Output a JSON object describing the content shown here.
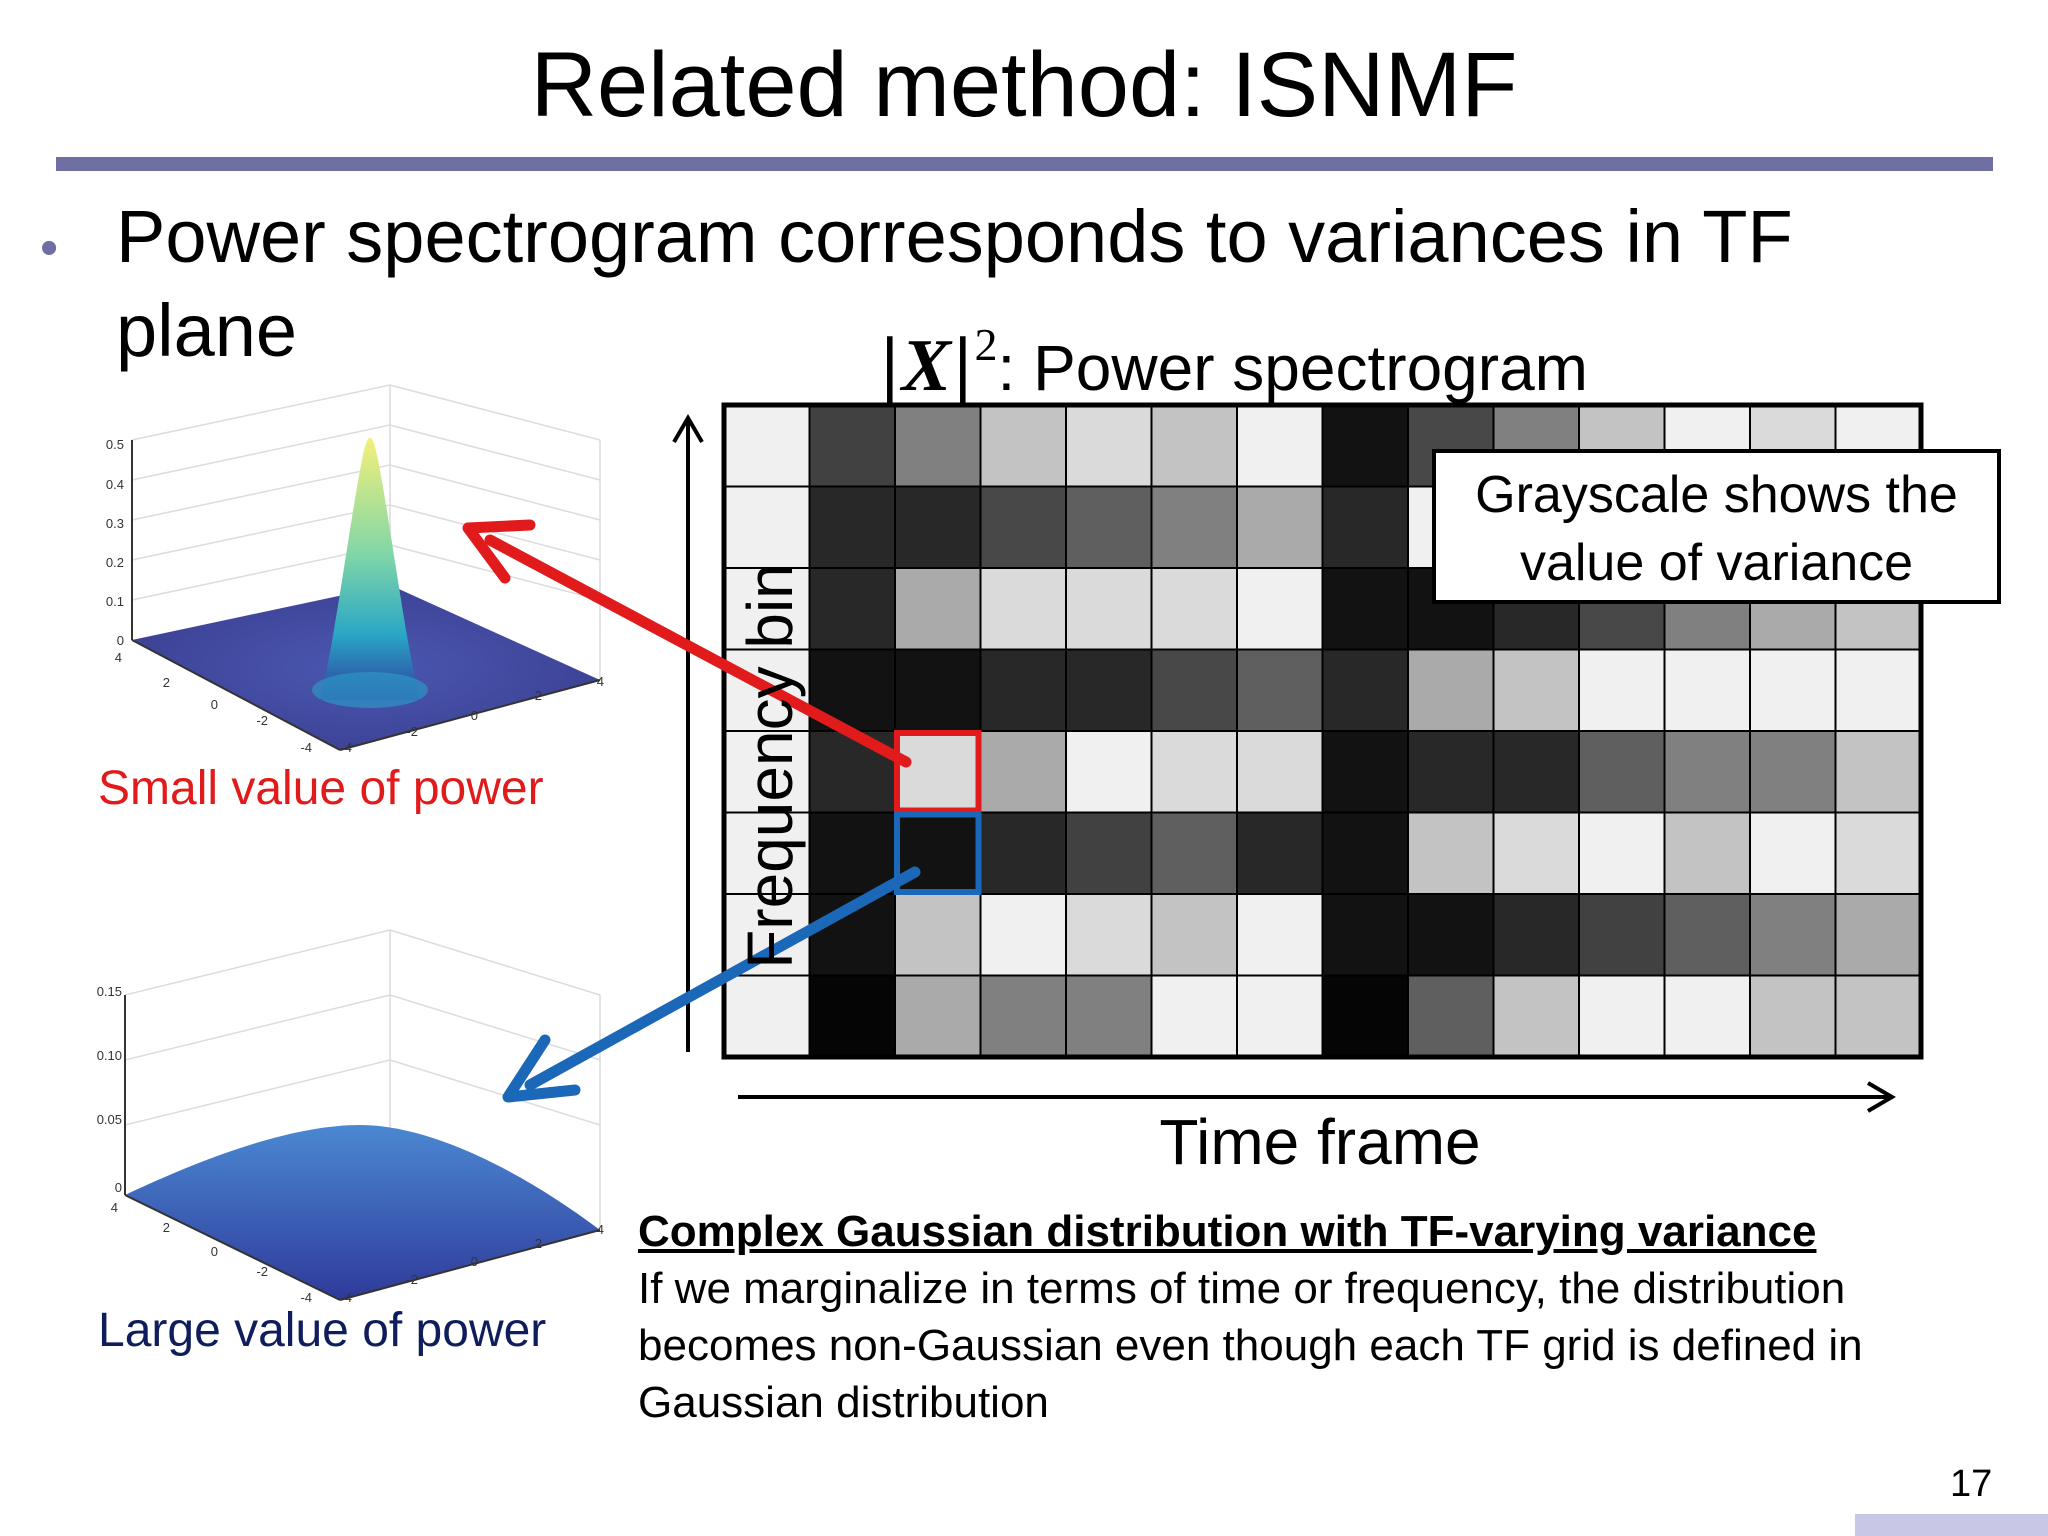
{
  "slide": {
    "title": "Related method: ISNMF",
    "bullet": "Power spectrogram corresponds to variances in TF plane",
    "page_number": "17",
    "accent_color": "#6f6fa3"
  },
  "spectrogram": {
    "symbol_bars": "|",
    "symbol_var": "X",
    "symbol_exp": "2",
    "title_suffix": ": Power spectrogram",
    "y_axis_label": "Frequency bin",
    "x_axis_label": "Time frame",
    "callout": "Grayscale shows the value of variance",
    "rows": 8,
    "cols": 14,
    "cell_gray_levels": [
      [
        240,
        65,
        128,
        195,
        218,
        195,
        240,
        18,
        72,
        128,
        195,
        240,
        218,
        240
      ],
      [
        240,
        40,
        40,
        72,
        95,
        128,
        170,
        40,
        240,
        240,
        240,
        240,
        240,
        240
      ],
      [
        240,
        40,
        170,
        218,
        218,
        218,
        240,
        18,
        18,
        40,
        72,
        128,
        170,
        195
      ],
      [
        240,
        18,
        18,
        40,
        40,
        72,
        95,
        40,
        170,
        195,
        240,
        240,
        240,
        240
      ],
      [
        240,
        40,
        218,
        170,
        240,
        218,
        218,
        18,
        40,
        40,
        95,
        128,
        128,
        195
      ],
      [
        240,
        18,
        18,
        40,
        65,
        95,
        40,
        18,
        195,
        218,
        240,
        195,
        240,
        218
      ],
      [
        240,
        18,
        195,
        240,
        218,
        195,
        240,
        18,
        18,
        40,
        65,
        95,
        128,
        170
      ],
      [
        240,
        5,
        170,
        128,
        128,
        240,
        240,
        5,
        95,
        195,
        240,
        240,
        195,
        195
      ]
    ],
    "highlight_red": {
      "row": 4,
      "col": 2,
      "color": "#e11b1b"
    },
    "highlight_blue": {
      "row": 5,
      "col": 2,
      "color": "#1b68b8"
    }
  },
  "plots": {
    "small": {
      "label": "Small value of power",
      "label_color": "#e11b1b",
      "z_ticks": [
        "0.5",
        "0.4",
        "0.3",
        "0.2",
        "0.1",
        "0"
      ],
      "xy_ticks_left": [
        "4",
        "2",
        "0",
        "-2",
        "-4"
      ],
      "xy_ticks_right": [
        "-4",
        "-2",
        "0",
        "2",
        "4"
      ]
    },
    "large": {
      "label": "Large value of power",
      "label_color": "#0f1d5c",
      "z_ticks": [
        "0.15",
        "0.10",
        "0.05",
        "0"
      ],
      "xy_ticks_left": [
        "4",
        "2",
        "0",
        "-2",
        "-4"
      ],
      "xy_ticks_right": [
        "-4",
        "-2",
        "0",
        "2",
        "4"
      ]
    }
  },
  "description": {
    "heading": "Complex Gaussian distribution with TF-varying variance",
    "body": "If we marginalize in terms of time or frequency, the distribution becomes non-Gaussian even though each TF grid is defined in Gaussian distribution"
  }
}
